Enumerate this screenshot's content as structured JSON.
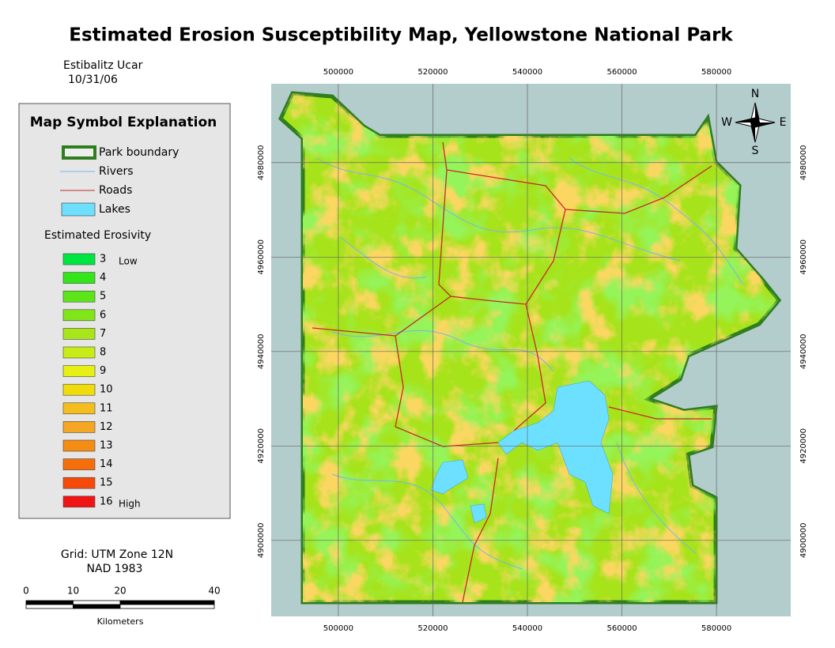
{
  "title": "Estimated Erosion Susceptibility Map, Yellowstone National Park",
  "author": "Estibalitz Ucar",
  "date": "10/31/06",
  "legend": {
    "title": "Map Symbol Explanation",
    "items": [
      {
        "label": "Park boundary",
        "color": "#2e7d1e"
      },
      {
        "label": "Rivers",
        "color": "#78b4f0"
      },
      {
        "label": "Roads",
        "color": "#c82828"
      },
      {
        "label": "Lakes",
        "color": "#6ee0ff"
      }
    ],
    "erosivity": {
      "title": "Estimated Erosivity",
      "classes": [
        {
          "value": 3,
          "color": "#00e640",
          "note": "Low"
        },
        {
          "value": 4,
          "color": "#33e61a"
        },
        {
          "value": 5,
          "color": "#5ce619"
        },
        {
          "value": 6,
          "color": "#80e619"
        },
        {
          "value": 7,
          "color": "#a8e619"
        },
        {
          "value": 8,
          "color": "#c8ec17"
        },
        {
          "value": 9,
          "color": "#e6f014"
        },
        {
          "value": 10,
          "color": "#f0dc0a"
        },
        {
          "value": 11,
          "color": "#f5be1e"
        },
        {
          "value": 12,
          "color": "#f5a623"
        },
        {
          "value": 13,
          "color": "#f58c14"
        },
        {
          "value": 14,
          "color": "#f56e0a"
        },
        {
          "value": 15,
          "color": "#f54a0a"
        },
        {
          "value": 16,
          "color": "#f01414",
          "note": "High"
        }
      ]
    }
  },
  "grid_info": [
    "Grid: UTM Zone 12N",
    "NAD 1983"
  ],
  "scale_bar": {
    "ticks": [
      0,
      10,
      20,
      40
    ],
    "unit": "Kilometers"
  },
  "map": {
    "xlim": [
      485800,
      595700
    ],
    "ylim": [
      4883900,
      4996700
    ],
    "xticks": [
      500000,
      520000,
      540000,
      560000,
      580000
    ],
    "yticks": [
      4980000,
      4960000,
      4940000,
      4920000,
      4900000
    ],
    "compass": {
      "n": "N",
      "w": "W",
      "e": "E",
      "s": "S"
    }
  }
}
